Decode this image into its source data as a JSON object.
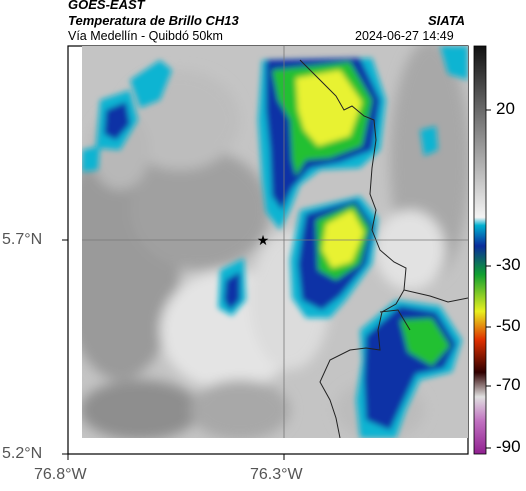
{
  "header": {
    "satellite": "GOES-EAST",
    "product": "Temperatura de Brillo CH13",
    "source": "SIATA",
    "subtitle": "Vía Medellín - Quibdó 50km",
    "timestamp": "2024-06-27 14:49"
  },
  "axes": {
    "lat_labels": [
      "5.7°N",
      "5.2°N"
    ],
    "lon_labels": [
      "76.8°W",
      "76.3°W"
    ]
  },
  "colorbar": {
    "tick_labels": [
      "20",
      "-30",
      "-50",
      "-70",
      "-90"
    ],
    "colors": [
      "#111111",
      "#888888",
      "#f2f2f2",
      "#00a8c8",
      "#1030a0",
      "#10a030",
      "#e6f020",
      "#e03000",
      "#300000",
      "#d0d0d0",
      "#b040b0"
    ]
  },
  "map": {
    "marker_icon": "star-icon",
    "colors": {
      "warm_light": "#e6e6e6",
      "warm_dark": "#8c8c8c",
      "cyan": "#10b4d2",
      "blue": "#0a30a6",
      "green": "#22c030",
      "yellow": "#e8f230",
      "border": "#222222",
      "grid": "#777777"
    }
  }
}
